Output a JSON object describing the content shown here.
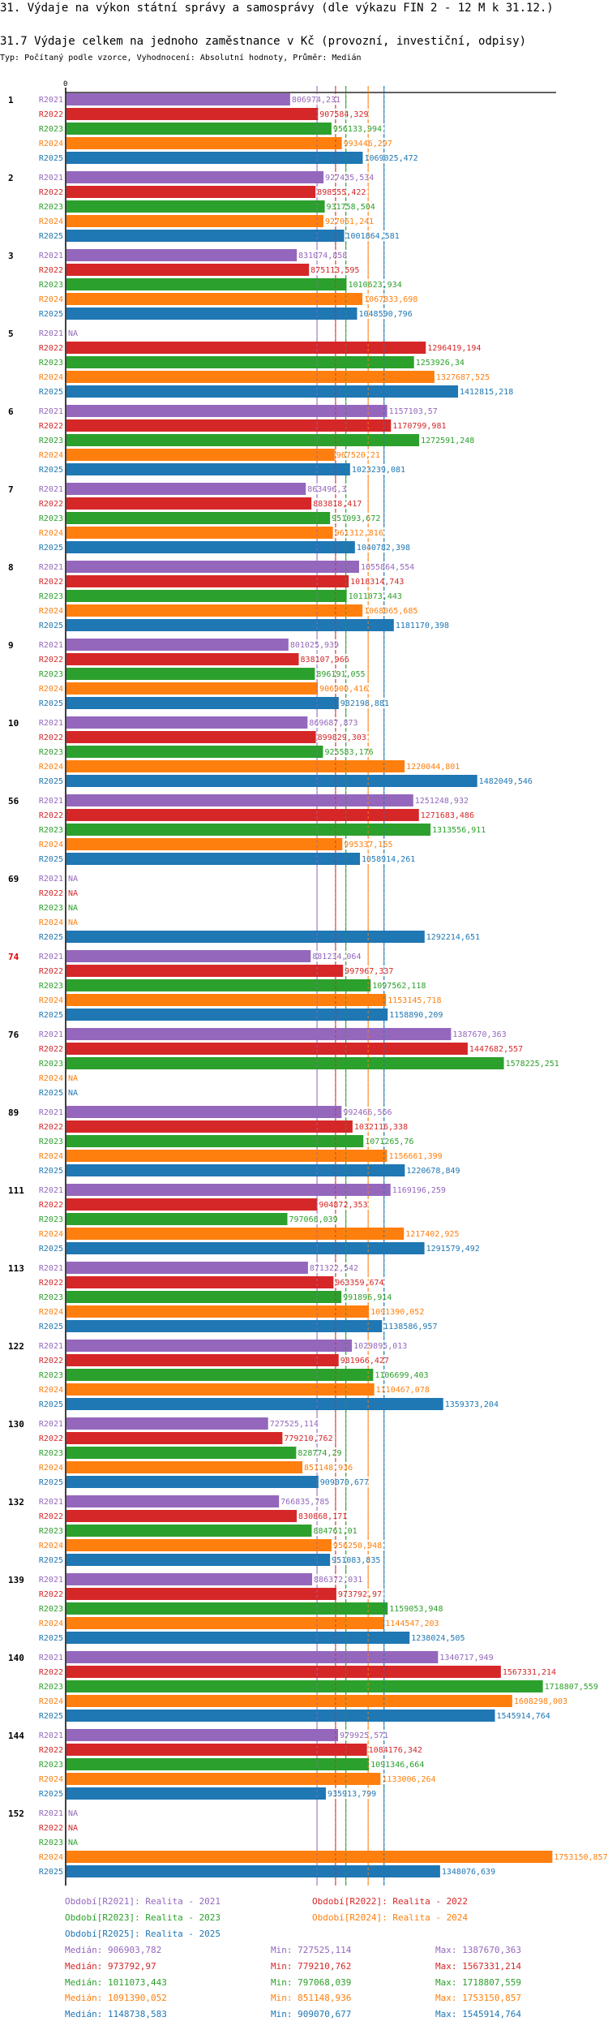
{
  "header": {
    "title": "31. Výdaje na výkon státní správy a samosprávy (dle výkazu FIN 2 - 12 M k 31.12.)",
    "subtitle": "31.7 Výdaje celkem na jednoho zaměstnance v Kč (provozní, investiční, odpisy)",
    "info": "Typ: Počítaný podle vzorce, Vyhodnocení: Absolutní hodnoty, Průměr: Medián"
  },
  "chart_data": {
    "type": "bar",
    "orientation": "horizontal",
    "title": "31.7 Výdaje celkem na jednoho zaměstnance v Kč (provozní, investiční, odpisy)",
    "xlabel": "",
    "ylabel": "",
    "x_tick_labels": [
      "0"
    ],
    "xlim": [
      0,
      1800000
    ],
    "grid": false,
    "legend_position": "bottom",
    "highlighted_category": "74",
    "na_label": "NA",
    "categories": [
      "1",
      "2",
      "3",
      "5",
      "6",
      "7",
      "8",
      "9",
      "10",
      "56",
      "69",
      "74",
      "76",
      "89",
      "111",
      "113",
      "122",
      "130",
      "132",
      "139",
      "140",
      "144",
      "152"
    ],
    "series": [
      {
        "name": "R2021",
        "legend": "Období[R2021]: Realita - 2021",
        "color": "#9467bd",
        "values": [
          806974.231,
          927435.534,
          831074.858,
          null,
          1157103.57,
          863496.3,
          1055864.554,
          801025.939,
          869687.873,
          1251248.932,
          null,
          881234.064,
          1387670.363,
          992466.566,
          1169196.259,
          871322.542,
          1029895.013,
          727525.114,
          766835.785,
          886372.031,
          1340717.949,
          979925.571,
          null
        ],
        "labels": [
          "806974,231",
          "927435,534",
          "831074,858",
          "NA",
          "1157103,57",
          "863496,3",
          "1055864,554",
          "801025,939",
          "869687,873",
          "1251248,932",
          "NA",
          "881234,064",
          "1387670,363",
          "992466,566",
          "1169196,259",
          "871322,542",
          "1029895,013",
          "727525,114",
          "766835,785",
          "886372,031",
          "1340717,949",
          "979925,571",
          "NA"
        ],
        "median": 906903.782,
        "min": 727525.114,
        "max": 1387670.363,
        "median_label": "Medián: 906903,782",
        "min_label": "Min: 727525,114",
        "max_label": "Max: 1387670,363"
      },
      {
        "name": "R2022",
        "legend": "Období[R2022]: Realita - 2022",
        "color": "#d62728",
        "values": [
          907584.329,
          898555.422,
          875113.595,
          1296419.194,
          1170799.981,
          883818.417,
          1018314.743,
          838107.966,
          899829.303,
          1271683.486,
          null,
          997967.337,
          1447682.557,
          1032116.338,
          904872.353,
          963359.674,
          981966.427,
          779210.762,
          830868.171,
          973792.97,
          1567331.214,
          1084176.342,
          null
        ],
        "labels": [
          "907584,329",
          "898555,422",
          "875113,595",
          "1296419,194",
          "1170799,981",
          "883818,417",
          "1018314,743",
          "838107,966",
          "899829,303",
          "1271683,486",
          "NA",
          "997967,337",
          "1447682,557",
          "1032116,338",
          "904872,353",
          "963359,674",
          "981966,427",
          "779210,762",
          "830868,171",
          "973792,97",
          "1567331,214",
          "1084176,342",
          "NA"
        ],
        "median": 973792.97,
        "min": 779210.762,
        "max": 1567331.214,
        "median_label": "Medián: 973792,97",
        "min_label": "Min: 779210,762",
        "max_label": "Max: 1567331,214"
      },
      {
        "name": "R2023",
        "legend": "Období[R2023]: Realita - 2023",
        "color": "#2ca02c",
        "values": [
          956133.994,
          931758.504,
          1010623.934,
          1253926.34,
          1272591.248,
          951093.672,
          1011073.443,
          896191.055,
          925583.176,
          1313556.911,
          null,
          1097562.118,
          1578225.251,
          1071265.76,
          797068.039,
          991896.914,
          1106699.403,
          828774.29,
          884761.01,
          1159053.948,
          1718807.559,
          1091346.664,
          null
        ],
        "labels": [
          "956133,994",
          "931758,504",
          "1010623,934",
          "1253926,34",
          "1272591,248",
          "951093,672",
          "1011073,443",
          "896191,055",
          "925583,176",
          "1313556,911",
          "NA",
          "1097562,118",
          "1578225,251",
          "1071265,76",
          "797068,039",
          "991896,914",
          "1106699,403",
          "828774,29",
          "884761,01",
          "1159053,948",
          "1718807,559",
          "1091346,664",
          "NA"
        ],
        "median": 1011073.443,
        "min": 797068.039,
        "max": 1718807.559,
        "median_label": "Medián: 1011073,443",
        "min_label": "Min: 797068,039",
        "max_label": "Max: 1718807,559"
      },
      {
        "name": "R2024",
        "legend": "Období[R2024]: Realita - 2024",
        "color": "#ff7f0e",
        "values": [
          993446.297,
          927061.241,
          1067833.698,
          1327687.525,
          967520.21,
          961312.816,
          1068065.685,
          906900.416,
          1220044.801,
          995337.165,
          null,
          1153145.718,
          null,
          1156661.399,
          1217402.925,
          1091390.052,
          1110467.078,
          851148.936,
          956250.948,
          1144547.203,
          1608298.003,
          1133006.264,
          1753150.857
        ],
        "labels": [
          "993446,297",
          "927061,241",
          "1067833,698",
          "1327687,525",
          "967520,21",
          "961312,816",
          "1068065,685",
          "906900,416",
          "1220044,801",
          "995337,165",
          "NA",
          "1153145,718",
          "NA",
          "1156661,399",
          "1217402,925",
          "1091390,052",
          "1110467,078",
          "851148,936",
          "956250,948",
          "1144547,203",
          "1608298,003",
          "1133006,264",
          "1753150,857"
        ],
        "median": 1091390.052,
        "min": 851148.936,
        "max": 1753150.857,
        "median_label": "Medián: 1091390,052",
        "min_label": "Min: 851148,936",
        "max_label": "Max: 1753150,857"
      },
      {
        "name": "R2025",
        "legend": "Období[R2025]: Realita - 2025",
        "color": "#1f77b4",
        "values": [
          1069025.472,
          1001864.581,
          1048590.796,
          1412815.218,
          1023239.081,
          1040782.398,
          1181170.398,
          982198.881,
          1482049.546,
          1058914.261,
          1292214.651,
          1158890.209,
          null,
          1220678.849,
          1291579.492,
          1138586.957,
          1359373.204,
          909070.677,
          951083.835,
          1238024.505,
          1545914.764,
          935913.799,
          1348076.639
        ],
        "labels": [
          "1069025,472",
          "1001864,581",
          "1048590,796",
          "1412815,218",
          "1023239,081",
          "1040782,398",
          "1181170,398",
          "982198,881",
          "1482049,546",
          "1058914,261",
          "1292214,651",
          "1158890,209",
          "NA",
          "1220678,849",
          "1291579,492",
          "1138586,957",
          "1359373,204",
          "909070,677",
          "951083,835",
          "1238024,505",
          "1545914,764",
          "935913,799",
          "1348076,639"
        ],
        "median": 1148738.583,
        "min": 909070.677,
        "max": 1545914.764,
        "median_label": "Medián: 1148738,583",
        "min_label": "Min: 909070,677",
        "max_label": "Max: 1545914,764"
      }
    ]
  }
}
